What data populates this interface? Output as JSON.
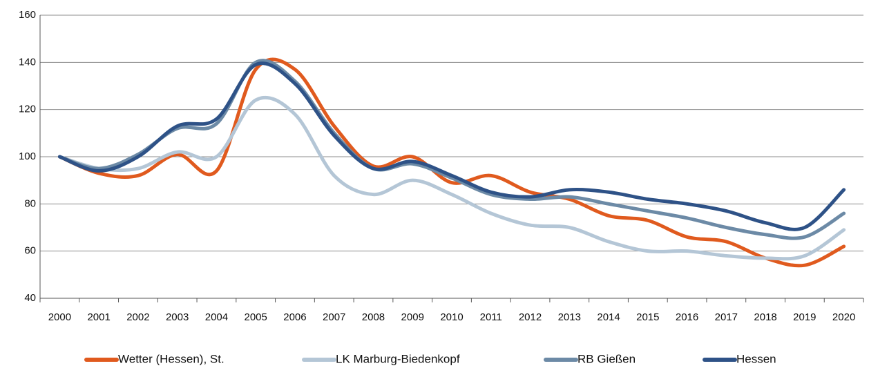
{
  "chart_data": {
    "type": "line",
    "categories": [
      "2000",
      "2001",
      "2002",
      "2003",
      "2004",
      "2005",
      "2006",
      "2007",
      "2008",
      "2009",
      "2010",
      "2011",
      "2012",
      "2013",
      "2014",
      "2015",
      "2016",
      "2017",
      "2018",
      "2019",
      "2020"
    ],
    "series": [
      {
        "name": "Wetter (Hessen), St.",
        "color": "#e05a1e",
        "values": [
          100,
          93,
          92,
          101,
          94,
          137,
          137,
          113,
          96,
          100,
          89,
          92,
          85,
          82,
          75,
          73,
          66,
          64,
          57,
          54,
          62
        ]
      },
      {
        "name": "LK Marburg-Biedenkopf",
        "color": "#b4c6d6",
        "values": [
          100,
          95,
          95,
          102,
          100,
          124,
          118,
          92,
          84,
          90,
          84,
          76,
          71,
          70,
          64,
          60,
          60,
          58,
          57,
          58,
          69
        ]
      },
      {
        "name": "RB Gießen",
        "color": "#6c8aa6",
        "values": [
          100,
          95,
          101,
          112,
          114,
          140,
          132,
          110,
          95,
          97,
          91,
          84,
          82,
          83,
          80,
          77,
          74,
          70,
          67,
          66,
          76
        ]
      },
      {
        "name": "Hessen",
        "color": "#2e5287",
        "values": [
          100,
          94,
          100,
          113,
          116,
          139,
          131,
          109,
          95,
          98,
          92,
          85,
          83,
          86,
          85,
          82,
          80,
          77,
          72,
          70,
          86
        ]
      }
    ],
    "ylim": [
      40,
      160
    ],
    "yticks": [
      40,
      60,
      80,
      100,
      120,
      140,
      160
    ],
    "grid": true,
    "legend": "bottom"
  }
}
